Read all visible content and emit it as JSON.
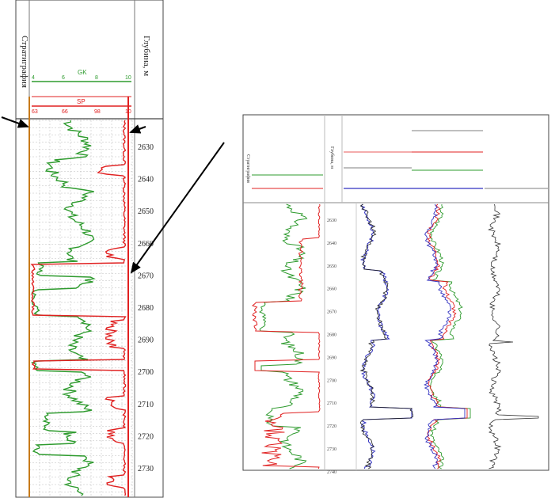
{
  "left_panel": {
    "column_left_label": "Стратиграфия",
    "column_right_label": "Глубина, м",
    "gk": {
      "name": "GK",
      "color": "#2e9b2e",
      "scale_ticks": [
        "4",
        "6",
        "8",
        "10"
      ]
    },
    "sp": {
      "name": "SP",
      "color": "#e02020",
      "scale_ticks": [
        "63",
        "66",
        "98",
        "10"
      ]
    },
    "depth_ticks": [
      "2630",
      "2640",
      "2650",
      "2660",
      "2670",
      "2680",
      "2690",
      "2700",
      "2710",
      "2720",
      "2730"
    ]
  },
  "right_panel": {
    "column_left_label": "Стратиграфия",
    "column_right_label": "Глубина, м",
    "depth_ticks": [
      "2630",
      "2640",
      "2650",
      "2660",
      "2670",
      "2680",
      "2690",
      "2700",
      "2710",
      "2720",
      "2730",
      "2740"
    ],
    "header_colors": [
      "#2e9b2e",
      "#e02020",
      "#3030c0",
      "#222222"
    ]
  }
}
